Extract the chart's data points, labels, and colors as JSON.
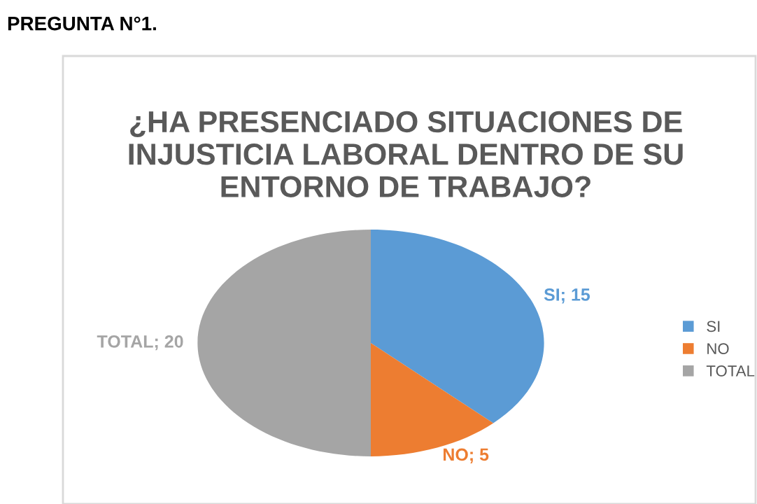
{
  "chart_data": {
    "type": "pie",
    "title": "¿HA PRESENCIADO SITUACIONES DE INJUSTICIA LABORAL DENTRO DE SU ENTORNO DE TRABAJO?",
    "annotations": [
      "PREGUNTA N°1."
    ],
    "categories": [
      "SI",
      "NO",
      "TOTAL"
    ],
    "values": [
      15,
      5,
      20
    ],
    "colors": [
      "#5b9bd5",
      "#ed7d31",
      "#a5a5a5"
    ],
    "value_labels": [
      "SI; 15",
      "NO; 5",
      "TOTAL; 20"
    ],
    "legend": "right"
  }
}
